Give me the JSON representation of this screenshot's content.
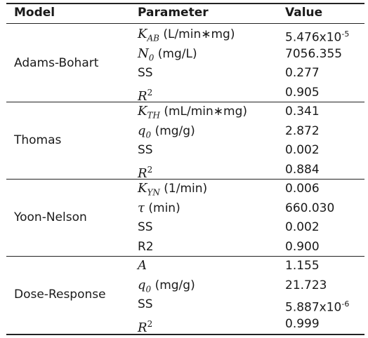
{
  "headers": {
    "model": "Model",
    "parameter": "Parameter",
    "value": "Value"
  },
  "groups": [
    {
      "model": "Adams-Bohart",
      "rows": [
        {
          "sym": "K",
          "sub": "AB",
          "sup": "",
          "unit": " (L/min∗mg)",
          "value": "5.476x10",
          "exp": "-5"
        },
        {
          "sym": "N",
          "sub": "0",
          "sup": "",
          "unit": " (mg/L)",
          "value": "7056.355",
          "exp": ""
        },
        {
          "sym": "",
          "sub": "",
          "sup": "",
          "unit": "SS",
          "value": "0.277",
          "exp": ""
        },
        {
          "sym": "R",
          "sub": "",
          "sup": "2",
          "unit": "",
          "value": "0.905",
          "exp": ""
        }
      ]
    },
    {
      "model": "Thomas",
      "rows": [
        {
          "sym": "K",
          "sub": "TH",
          "sup": "",
          "unit": " (mL/min∗mg)",
          "value": "0.341",
          "exp": ""
        },
        {
          "sym": "q",
          "sub": "0",
          "sup": "",
          "unit": " (mg/g)",
          "value": "2.872",
          "exp": ""
        },
        {
          "sym": "",
          "sub": "",
          "sup": "",
          "unit": "SS",
          "value": "0.002",
          "exp": ""
        },
        {
          "sym": "R",
          "sub": "",
          "sup": "2",
          "unit": "",
          "value": "0.884",
          "exp": ""
        }
      ]
    },
    {
      "model": "Yoon-Nelson",
      "rows": [
        {
          "sym": "K",
          "sub": "YN",
          "sup": "",
          "unit": " (1/min)",
          "value": "0.006",
          "exp": ""
        },
        {
          "sym": "τ",
          "sub": "",
          "sup": "",
          "unit": " (min)",
          "value": "660.030",
          "exp": ""
        },
        {
          "sym": "",
          "sub": "",
          "sup": "",
          "unit": "SS",
          "value": "0.002",
          "exp": ""
        },
        {
          "sym": "",
          "sub": "",
          "sup": "",
          "unit": "R2",
          "value": "0.900",
          "exp": ""
        }
      ]
    },
    {
      "model": "Dose-Response",
      "rows": [
        {
          "sym": "A",
          "sub": "",
          "sup": "",
          "unit": "",
          "value": "1.155",
          "exp": ""
        },
        {
          "sym": "q",
          "sub": "0",
          "sup": "",
          "unit": " (mg/g)",
          "value": "21.723",
          "exp": ""
        },
        {
          "sym": "",
          "sub": "",
          "sup": "",
          "unit": "SS",
          "value": "5.887x10",
          "exp": "-6"
        },
        {
          "sym": "R",
          "sub": "",
          "sup": "2",
          "unit": "",
          "value": "0.999",
          "exp": ""
        }
      ]
    }
  ]
}
